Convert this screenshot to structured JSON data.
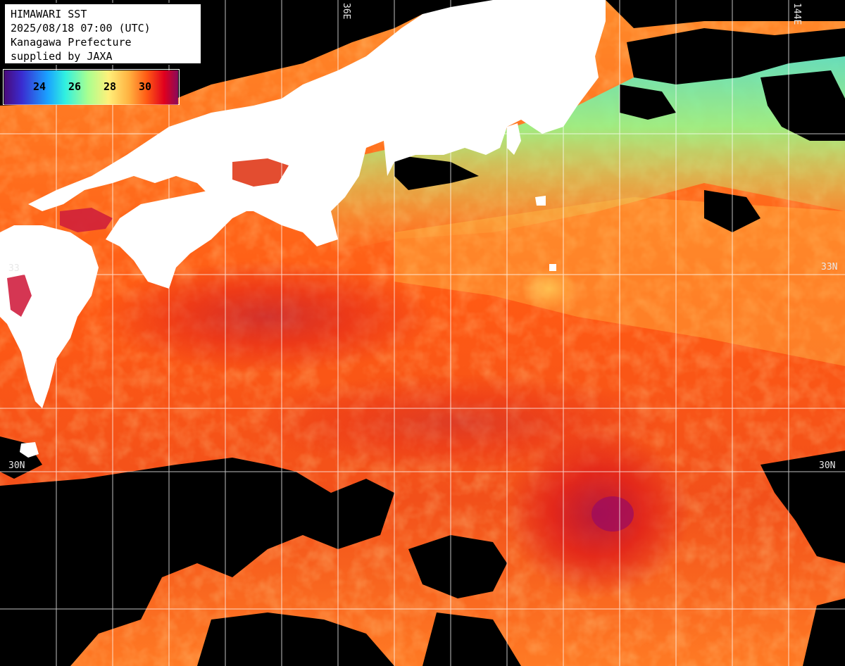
{
  "info": {
    "line1": "HIMAWARI SST",
    "line2": "2025/08/18 07:00 (UTC)",
    "line3": "Kanagawa Prefecture",
    "line4": "supplied by JAXA"
  },
  "scale": {
    "labels": [
      "24",
      "26",
      "28",
      "30"
    ],
    "colors": [
      "#2a0a6e",
      "#3a2bd0",
      "#1aa2ff",
      "#30f0e0",
      "#a8ff90",
      "#fff07a",
      "#ffb040",
      "#ff5a14",
      "#e0001e",
      "#c0007a",
      "#8a0a5a"
    ]
  },
  "grid_labels": {
    "lat_33_left": "33",
    "lat_33_right": "33N",
    "lat_30_left": "30N",
    "lat_30_right": "30N",
    "lon_top_left": "36E",
    "lon_top_right": "144E"
  },
  "colors": {
    "land": "#ffffff",
    "cloud": "#000000",
    "gridline": "#ffffff"
  }
}
